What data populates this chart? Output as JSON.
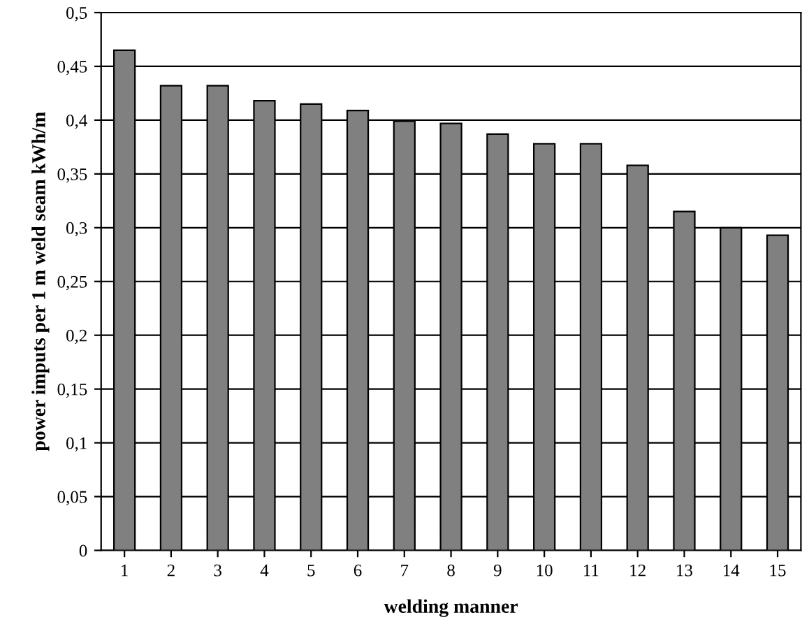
{
  "chart_data": {
    "type": "bar",
    "xlabel": "welding manner",
    "ylabel": "power imputs per 1 m weld seam kWh/m",
    "categories": [
      "1",
      "2",
      "3",
      "4",
      "5",
      "6",
      "7",
      "8",
      "9",
      "10",
      "11",
      "12",
      "13",
      "14",
      "15"
    ],
    "values": [
      0.465,
      0.432,
      0.432,
      0.418,
      0.415,
      0.409,
      0.399,
      0.397,
      0.387,
      0.378,
      0.378,
      0.358,
      0.315,
      0.3,
      0.293
    ],
    "color": "#808080",
    "ylim": [
      0,
      0.5
    ],
    "yticks": [
      0,
      {
        "value": 0.05,
        "label": "0,05"
      },
      {
        "value": 0.1,
        "label": "0,1"
      },
      {
        "value": 0.15,
        "label": "0,15"
      },
      {
        "value": 0.2,
        "label": "0,2"
      },
      {
        "value": 0.25,
        "label": "0,25"
      },
      {
        "value": 0.3,
        "label": "0,3"
      },
      {
        "value": 0.35,
        "label": "0,35"
      },
      {
        "value": 0.4,
        "label": "0,4"
      },
      {
        "value": 0.45,
        "label": "0,45"
      },
      {
        "value": 0.5,
        "label": "0,5"
      }
    ],
    "grid": "y",
    "legend": false
  }
}
